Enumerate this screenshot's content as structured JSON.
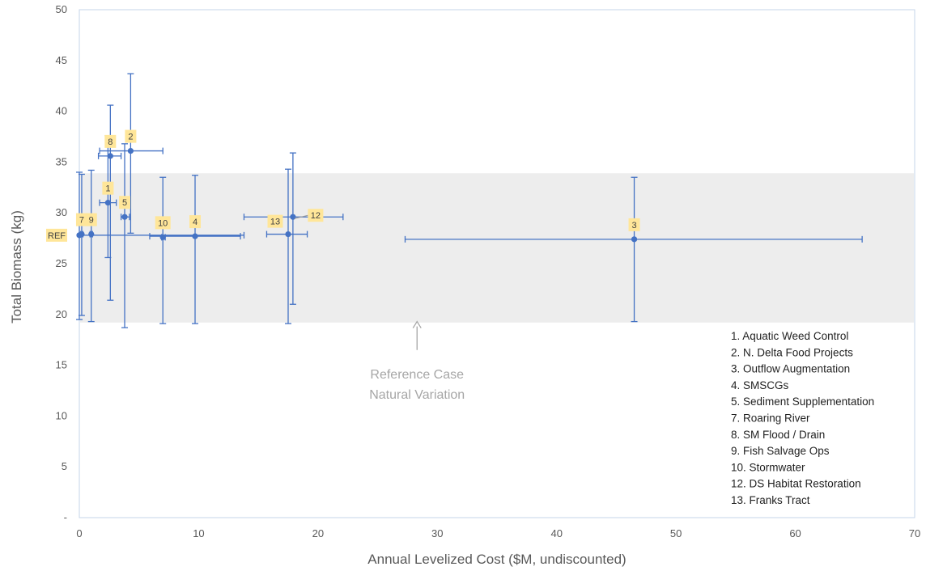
{
  "chart_data": {
    "type": "scatter",
    "xlabel": "Annual Levelized Cost ($M, undiscounted)",
    "ylabel": "Total Biomass (kg)",
    "xlim": [
      0,
      70
    ],
    "ylim": [
      0,
      50
    ],
    "x_ticks": [
      "0",
      "10",
      "20",
      "30",
      "40",
      "50",
      "60",
      "70"
    ],
    "y_ticks": [
      "-",
      "5",
      "10",
      "15",
      "20",
      "25",
      "30",
      "35",
      "40",
      "45",
      "50"
    ],
    "colors": {
      "series": "#4472c4",
      "label_bg": "#ffe699",
      "band": "#ededed",
      "annotation": "#a6a6a6"
    },
    "band": {
      "y_min": 19.2,
      "y_max": 33.9
    },
    "annotation": {
      "lines": [
        "Reference Case",
        "Natural Variation"
      ],
      "arrow_x": 28.3,
      "arrow_y_from": 16.5,
      "arrow_y_to": 19.3
    },
    "points": [
      {
        "label": "REF",
        "x": 0.0,
        "y": 27.8,
        "x_err": [
          0.0,
          13.8
        ],
        "y_err": [
          19.5,
          34.0
        ]
      },
      {
        "label": "7",
        "x": 0.2,
        "y": 27.9,
        "x_err": [
          0.1,
          0.3
        ],
        "y_err": [
          19.9,
          33.8
        ]
      },
      {
        "label": "9",
        "x": 1.0,
        "y": 27.9,
        "x_err": [
          0.9,
          1.1
        ],
        "y_err": [
          19.3,
          34.2
        ]
      },
      {
        "label": "1",
        "x": 2.4,
        "y": 31.0,
        "x_err": [
          1.7,
          3.1
        ],
        "y_err": [
          25.6,
          37.6
        ]
      },
      {
        "label": "8",
        "x": 2.6,
        "y": 35.6,
        "x_err": [
          1.6,
          3.5
        ],
        "y_err": [
          21.4,
          40.6
        ]
      },
      {
        "label": "5",
        "x": 3.8,
        "y": 29.6,
        "x_err": [
          3.5,
          4.2
        ],
        "y_err": [
          18.7,
          36.8
        ]
      },
      {
        "label": "2",
        "x": 4.3,
        "y": 36.1,
        "x_err": [
          1.7,
          7.0
        ],
        "y_err": [
          28.0,
          43.7
        ]
      },
      {
        "label": "10",
        "x": 7.0,
        "y": 27.6,
        "x_err": [
          6.9,
          7.2
        ],
        "y_err": [
          19.1,
          33.5
        ]
      },
      {
        "label": "4",
        "x": 9.7,
        "y": 27.7,
        "x_err": [
          5.9,
          13.5
        ],
        "y_err": [
          19.1,
          33.7
        ]
      },
      {
        "label": "13",
        "x": 17.5,
        "y": 27.9,
        "x_err": [
          15.7,
          19.1
        ],
        "y_err": [
          19.1,
          34.3
        ]
      },
      {
        "label": "12",
        "x": 17.9,
        "y": 29.6,
        "x_err": [
          13.8,
          22.1
        ],
        "y_err": [
          21.0,
          35.9
        ]
      },
      {
        "label": "3",
        "x": 46.5,
        "y": 27.4,
        "x_err": [
          27.3,
          65.6
        ],
        "y_err": [
          19.3,
          33.5
        ]
      }
    ],
    "legend": [
      "1. Aquatic Weed Control",
      "2. N. Delta Food Projects",
      "3. Outflow Augmentation",
      "4. SMSCGs",
      "5. Sediment Supplementation",
      "7. Roaring River",
      "8. SM Flood / Drain",
      "9. Fish Salvage Ops",
      "10. Stormwater",
      "12. DS Habitat Restoration",
      "13. Franks Tract"
    ]
  }
}
